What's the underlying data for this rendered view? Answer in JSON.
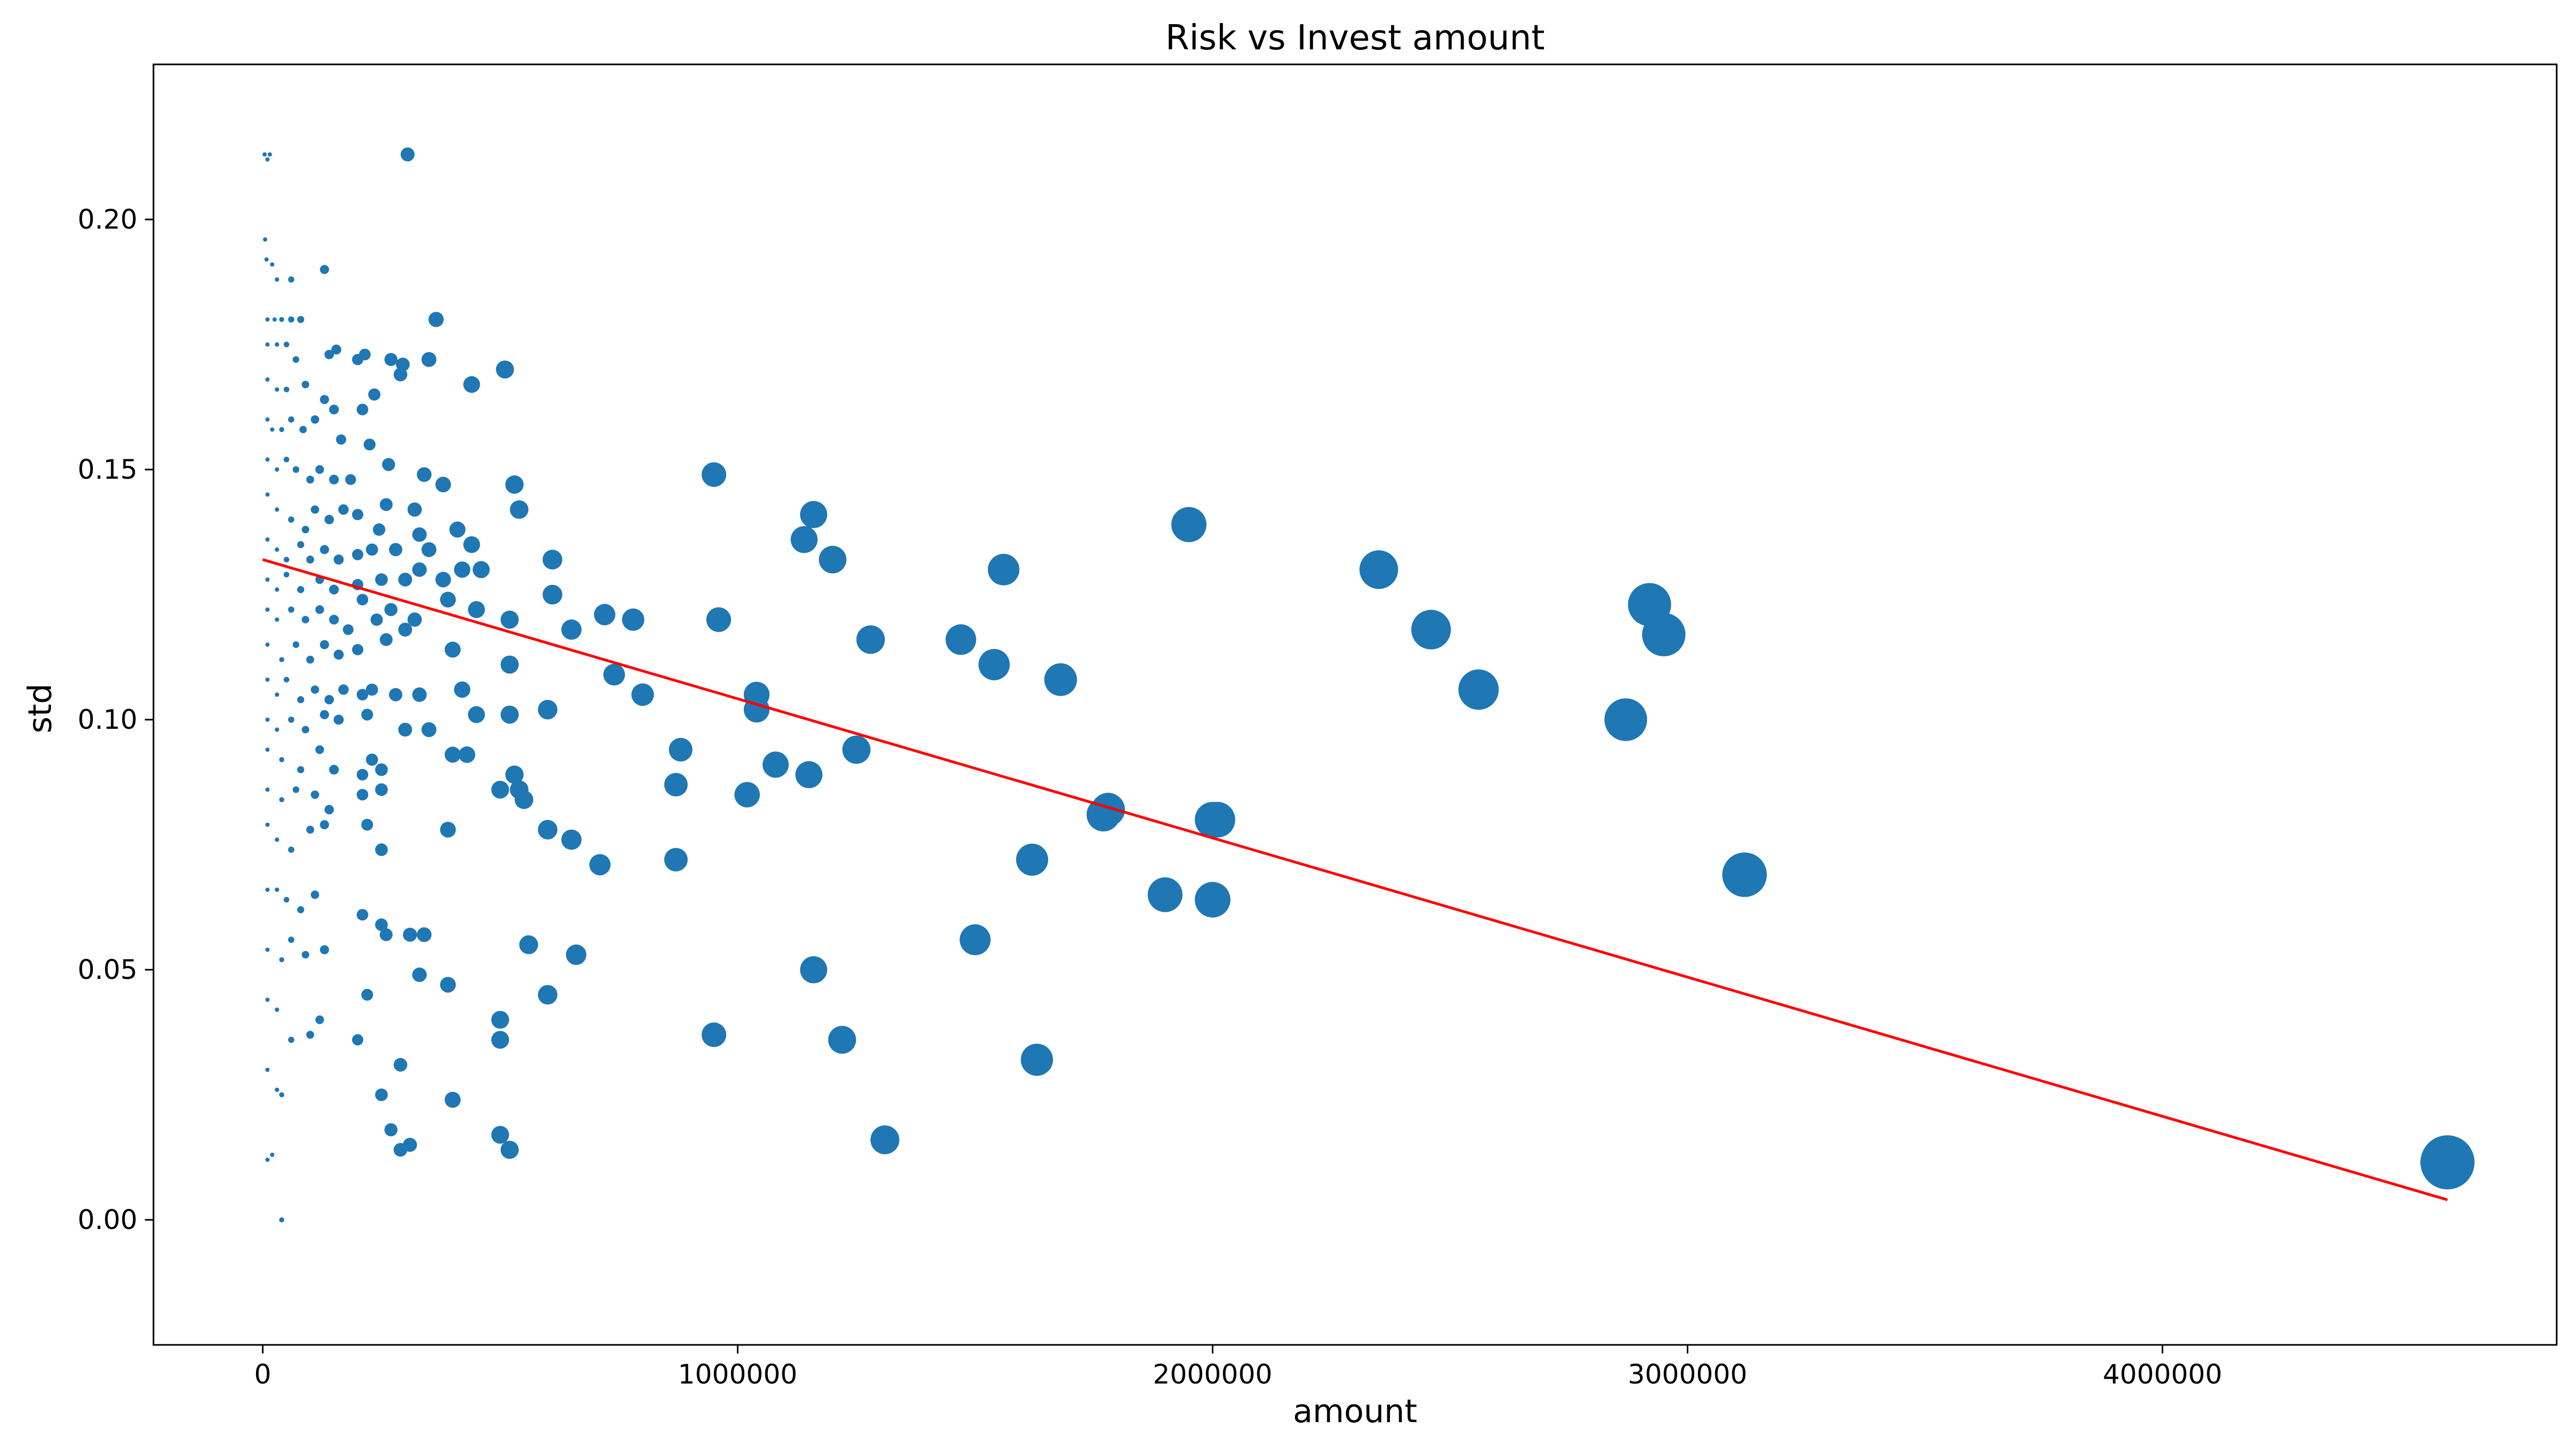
{
  "chart_data": {
    "type": "scatter",
    "title": "Risk vs Invest amount",
    "xlabel": "amount",
    "ylabel": "std",
    "xlim": [
      -230000,
      4830000
    ],
    "ylim": [
      -0.025,
      0.231
    ],
    "x_ticks": [
      0,
      1000000,
      2000000,
      3000000,
      4000000
    ],
    "y_ticks": [
      0.0,
      0.05,
      0.1,
      0.15,
      0.2
    ],
    "y_tick_labels": [
      "0.00",
      "0.05",
      "0.10",
      "0.15",
      "0.20"
    ],
    "grid": false,
    "marker_color": "#1f77b4",
    "marker_size_note": "marker area proportional to amount",
    "points": [
      [
        4000,
        0.213
      ],
      [
        10000,
        0.212
      ],
      [
        15000,
        0.213
      ],
      [
        305000,
        0.213
      ],
      [
        5000,
        0.196
      ],
      [
        8000,
        0.192
      ],
      [
        20000,
        0.191
      ],
      [
        30000,
        0.188
      ],
      [
        60000,
        0.188
      ],
      [
        130000,
        0.19
      ],
      [
        10000,
        0.18
      ],
      [
        25000,
        0.18
      ],
      [
        40000,
        0.18
      ],
      [
        60000,
        0.18
      ],
      [
        80000,
        0.18
      ],
      [
        365000,
        0.18
      ],
      [
        10000,
        0.175
      ],
      [
        30000,
        0.175
      ],
      [
        50000,
        0.175
      ],
      [
        70000,
        0.172
      ],
      [
        140000,
        0.173
      ],
      [
        155000,
        0.174
      ],
      [
        200000,
        0.172
      ],
      [
        215000,
        0.173
      ],
      [
        270000,
        0.172
      ],
      [
        295000,
        0.171
      ],
      [
        350000,
        0.172
      ],
      [
        510000,
        0.17
      ],
      [
        10000,
        0.168
      ],
      [
        30000,
        0.166
      ],
      [
        50000,
        0.166
      ],
      [
        90000,
        0.167
      ],
      [
        130000,
        0.164
      ],
      [
        150000,
        0.162
      ],
      [
        210000,
        0.162
      ],
      [
        235000,
        0.165
      ],
      [
        290000,
        0.169
      ],
      [
        440000,
        0.167
      ],
      [
        10000,
        0.16
      ],
      [
        20000,
        0.158
      ],
      [
        40000,
        0.158
      ],
      [
        60000,
        0.16
      ],
      [
        85000,
        0.158
      ],
      [
        110000,
        0.16
      ],
      [
        165000,
        0.156
      ],
      [
        225000,
        0.155
      ],
      [
        10000,
        0.152
      ],
      [
        30000,
        0.15
      ],
      [
        50000,
        0.152
      ],
      [
        70000,
        0.15
      ],
      [
        100000,
        0.148
      ],
      [
        120000,
        0.15
      ],
      [
        150000,
        0.148
      ],
      [
        185000,
        0.148
      ],
      [
        265000,
        0.151
      ],
      [
        340000,
        0.149
      ],
      [
        380000,
        0.147
      ],
      [
        530000,
        0.147
      ],
      [
        540000,
        0.142
      ],
      [
        950000,
        0.149
      ],
      [
        10000,
        0.145
      ],
      [
        30000,
        0.142
      ],
      [
        60000,
        0.14
      ],
      [
        90000,
        0.138
      ],
      [
        110000,
        0.142
      ],
      [
        140000,
        0.14
      ],
      [
        170000,
        0.142
      ],
      [
        200000,
        0.141
      ],
      [
        245000,
        0.138
      ],
      [
        260000,
        0.143
      ],
      [
        320000,
        0.142
      ],
      [
        410000,
        0.138
      ],
      [
        1160000,
        0.141
      ],
      [
        1140000,
        0.136
      ],
      [
        1950000,
        0.139
      ],
      [
        10000,
        0.136
      ],
      [
        30000,
        0.134
      ],
      [
        50000,
        0.132
      ],
      [
        80000,
        0.135
      ],
      [
        100000,
        0.132
      ],
      [
        130000,
        0.134
      ],
      [
        160000,
        0.132
      ],
      [
        200000,
        0.133
      ],
      [
        230000,
        0.134
      ],
      [
        280000,
        0.134
      ],
      [
        330000,
        0.137
      ],
      [
        350000,
        0.134
      ],
      [
        440000,
        0.135
      ],
      [
        610000,
        0.132
      ],
      [
        1200000,
        0.132
      ],
      [
        10000,
        0.128
      ],
      [
        30000,
        0.126
      ],
      [
        50000,
        0.129
      ],
      [
        80000,
        0.126
      ],
      [
        120000,
        0.128
      ],
      [
        150000,
        0.126
      ],
      [
        200000,
        0.127
      ],
      [
        250000,
        0.128
      ],
      [
        300000,
        0.128
      ],
      [
        330000,
        0.13
      ],
      [
        380000,
        0.128
      ],
      [
        420000,
        0.13
      ],
      [
        460000,
        0.13
      ],
      [
        1560000,
        0.13
      ],
      [
        2350000,
        0.13
      ],
      [
        10000,
        0.122
      ],
      [
        30000,
        0.12
      ],
      [
        60000,
        0.122
      ],
      [
        90000,
        0.12
      ],
      [
        120000,
        0.122
      ],
      [
        150000,
        0.12
      ],
      [
        180000,
        0.118
      ],
      [
        210000,
        0.124
      ],
      [
        240000,
        0.12
      ],
      [
        270000,
        0.122
      ],
      [
        300000,
        0.118
      ],
      [
        320000,
        0.12
      ],
      [
        390000,
        0.124
      ],
      [
        450000,
        0.122
      ],
      [
        520000,
        0.12
      ],
      [
        610000,
        0.125
      ],
      [
        650000,
        0.118
      ],
      [
        720000,
        0.121
      ],
      [
        780000,
        0.12
      ],
      [
        960000,
        0.12
      ],
      [
        2920000,
        0.123
      ],
      [
        10000,
        0.115
      ],
      [
        40000,
        0.112
      ],
      [
        70000,
        0.115
      ],
      [
        100000,
        0.112
      ],
      [
        130000,
        0.115
      ],
      [
        160000,
        0.113
      ],
      [
        200000,
        0.114
      ],
      [
        260000,
        0.116
      ],
      [
        400000,
        0.114
      ],
      [
        520000,
        0.111
      ],
      [
        740000,
        0.109
      ],
      [
        1280000,
        0.116
      ],
      [
        1470000,
        0.116
      ],
      [
        1540000,
        0.111
      ],
      [
        2460000,
        0.118
      ],
      [
        2950000,
        0.117
      ],
      [
        10000,
        0.108
      ],
      [
        30000,
        0.105
      ],
      [
        50000,
        0.108
      ],
      [
        80000,
        0.104
      ],
      [
        110000,
        0.106
      ],
      [
        140000,
        0.104
      ],
      [
        170000,
        0.106
      ],
      [
        210000,
        0.105
      ],
      [
        230000,
        0.106
      ],
      [
        280000,
        0.105
      ],
      [
        330000,
        0.105
      ],
      [
        420000,
        0.106
      ],
      [
        800000,
        0.105
      ],
      [
        1040000,
        0.105
      ],
      [
        1680000,
        0.108
      ],
      [
        2560000,
        0.106
      ],
      [
        10000,
        0.1
      ],
      [
        30000,
        0.098
      ],
      [
        60000,
        0.1
      ],
      [
        90000,
        0.098
      ],
      [
        130000,
        0.101
      ],
      [
        160000,
        0.1
      ],
      [
        220000,
        0.101
      ],
      [
        300000,
        0.098
      ],
      [
        350000,
        0.098
      ],
      [
        450000,
        0.101
      ],
      [
        520000,
        0.101
      ],
      [
        600000,
        0.102
      ],
      [
        1040000,
        0.102
      ],
      [
        2870000,
        0.1
      ],
      [
        10000,
        0.094
      ],
      [
        40000,
        0.092
      ],
      [
        80000,
        0.09
      ],
      [
        120000,
        0.094
      ],
      [
        150000,
        0.09
      ],
      [
        210000,
        0.089
      ],
      [
        230000,
        0.092
      ],
      [
        250000,
        0.09
      ],
      [
        400000,
        0.093
      ],
      [
        430000,
        0.093
      ],
      [
        530000,
        0.089
      ],
      [
        880000,
        0.094
      ],
      [
        1080000,
        0.091
      ],
      [
        1150000,
        0.089
      ],
      [
        1250000,
        0.094
      ],
      [
        10000,
        0.086
      ],
      [
        40000,
        0.084
      ],
      [
        70000,
        0.086
      ],
      [
        110000,
        0.085
      ],
      [
        140000,
        0.082
      ],
      [
        210000,
        0.085
      ],
      [
        250000,
        0.086
      ],
      [
        500000,
        0.086
      ],
      [
        540000,
        0.086
      ],
      [
        550000,
        0.084
      ],
      [
        870000,
        0.087
      ],
      [
        1020000,
        0.085
      ],
      [
        1780000,
        0.082
      ],
      [
        1770000,
        0.081
      ],
      [
        2000000,
        0.08
      ],
      [
        2010000,
        0.08
      ],
      [
        10000,
        0.079
      ],
      [
        30000,
        0.076
      ],
      [
        60000,
        0.074
      ],
      [
        100000,
        0.078
      ],
      [
        130000,
        0.079
      ],
      [
        220000,
        0.079
      ],
      [
        250000,
        0.074
      ],
      [
        390000,
        0.078
      ],
      [
        600000,
        0.078
      ],
      [
        650000,
        0.076
      ],
      [
        710000,
        0.071
      ],
      [
        870000,
        0.072
      ],
      [
        1620000,
        0.072
      ],
      [
        3120000,
        0.069
      ],
      [
        10000,
        0.066
      ],
      [
        30000,
        0.066
      ],
      [
        50000,
        0.064
      ],
      [
        80000,
        0.062
      ],
      [
        110000,
        0.065
      ],
      [
        210000,
        0.061
      ],
      [
        250000,
        0.059
      ],
      [
        260000,
        0.057
      ],
      [
        310000,
        0.057
      ],
      [
        340000,
        0.057
      ],
      [
        1900000,
        0.065
      ],
      [
        2000000,
        0.064
      ],
      [
        10000,
        0.054
      ],
      [
        40000,
        0.052
      ],
      [
        60000,
        0.056
      ],
      [
        90000,
        0.053
      ],
      [
        130000,
        0.054
      ],
      [
        330000,
        0.049
      ],
      [
        390000,
        0.047
      ],
      [
        560000,
        0.055
      ],
      [
        660000,
        0.053
      ],
      [
        1500000,
        0.056
      ],
      [
        10000,
        0.044
      ],
      [
        30000,
        0.042
      ],
      [
        60000,
        0.036
      ],
      [
        100000,
        0.037
      ],
      [
        120000,
        0.04
      ],
      [
        200000,
        0.036
      ],
      [
        220000,
        0.045
      ],
      [
        500000,
        0.04
      ],
      [
        500000,
        0.036
      ],
      [
        600000,
        0.045
      ],
      [
        950000,
        0.037
      ],
      [
        1160000,
        0.05
      ],
      [
        1220000,
        0.036
      ],
      [
        1630000,
        0.032
      ],
      [
        10000,
        0.03
      ],
      [
        30000,
        0.026
      ],
      [
        40000,
        0.025
      ],
      [
        250000,
        0.025
      ],
      [
        290000,
        0.031
      ],
      [
        400000,
        0.024
      ],
      [
        10000,
        0.012
      ],
      [
        20000,
        0.013
      ],
      [
        40000,
        0.0
      ],
      [
        270000,
        0.018
      ],
      [
        290000,
        0.014
      ],
      [
        310000,
        0.015
      ],
      [
        500000,
        0.017
      ],
      [
        520000,
        0.014
      ],
      [
        1310000,
        0.016
      ],
      [
        4600000,
        0.0115
      ]
    ],
    "fit_line": {
      "color": "#ff0000",
      "x": [
        0,
        4600000
      ],
      "y": [
        0.132,
        0.004
      ]
    }
  }
}
